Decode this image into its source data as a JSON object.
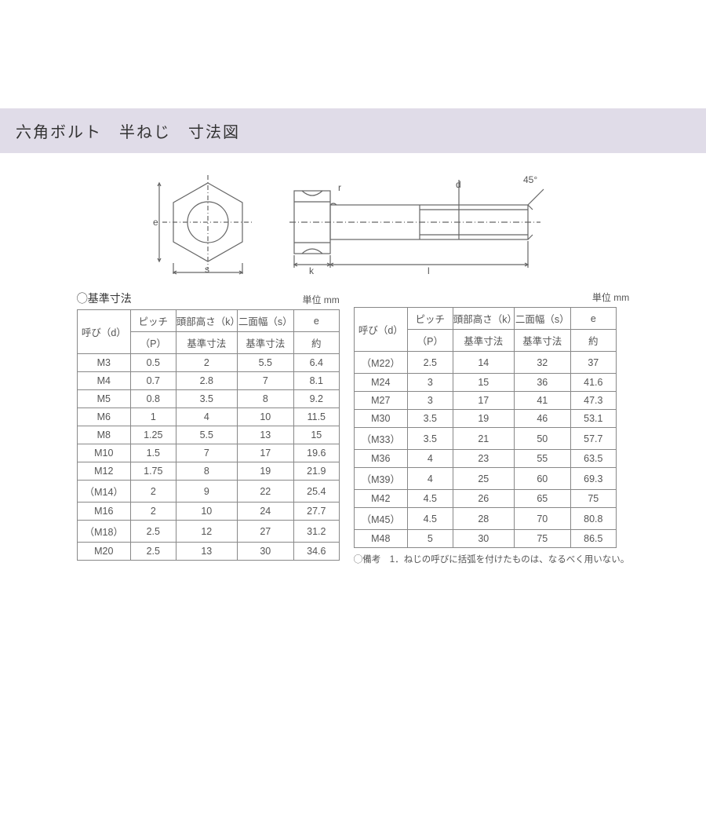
{
  "title": "六角ボルト　半ねじ　寸法図",
  "diagram": {
    "labels": {
      "e": "e",
      "s": "s",
      "r": "r",
      "k": "k",
      "l": "l",
      "d": "d",
      "angle": "45°"
    },
    "stroke": "#666666",
    "fill": "#ffffff"
  },
  "unit_label": "単位 mm",
  "section_label": "◯基準寸法",
  "note_label": "◯備考　1．ねじの呼びに括弧を付けたものは、なるべく用いない。",
  "headers": {
    "d": "呼び（d）",
    "p_top": "ピッチ",
    "p_sub": "（P）",
    "k_top": "頭部高さ（k）",
    "k_sub": "基準寸法",
    "s_top": "二面幅（s）",
    "s_sub": "基準寸法",
    "e_top": "e",
    "e_sub": "約"
  },
  "table1_rows": [
    [
      "M3",
      "0.5",
      "2",
      "5.5",
      "6.4"
    ],
    [
      "M4",
      "0.7",
      "2.8",
      "7",
      "8.1"
    ],
    [
      "M5",
      "0.8",
      "3.5",
      "8",
      "9.2"
    ],
    [
      "M6",
      "1",
      "4",
      "10",
      "11.5"
    ],
    [
      "M8",
      "1.25",
      "5.5",
      "13",
      "15"
    ],
    [
      "M10",
      "1.5",
      "7",
      "17",
      "19.6"
    ],
    [
      "M12",
      "1.75",
      "8",
      "19",
      "21.9"
    ],
    [
      "（M14）",
      "2",
      "9",
      "22",
      "25.4"
    ],
    [
      "M16",
      "2",
      "10",
      "24",
      "27.7"
    ],
    [
      "（M18）",
      "2.5",
      "12",
      "27",
      "31.2"
    ],
    [
      "M20",
      "2.5",
      "13",
      "30",
      "34.6"
    ]
  ],
  "table2_rows": [
    [
      "（M22）",
      "2.5",
      "14",
      "32",
      "37"
    ],
    [
      "M24",
      "3",
      "15",
      "36",
      "41.6"
    ],
    [
      "M27",
      "3",
      "17",
      "41",
      "47.3"
    ],
    [
      "M30",
      "3.5",
      "19",
      "46",
      "53.1"
    ],
    [
      "（M33）",
      "3.5",
      "21",
      "50",
      "57.7"
    ],
    [
      "M36",
      "4",
      "23",
      "55",
      "63.5"
    ],
    [
      "（M39）",
      "4",
      "25",
      "60",
      "69.3"
    ],
    [
      "M42",
      "4.5",
      "26",
      "65",
      "75"
    ],
    [
      "（M45）",
      "4.5",
      "28",
      "70",
      "80.8"
    ],
    [
      "M48",
      "5",
      "30",
      "75",
      "86.5"
    ]
  ]
}
